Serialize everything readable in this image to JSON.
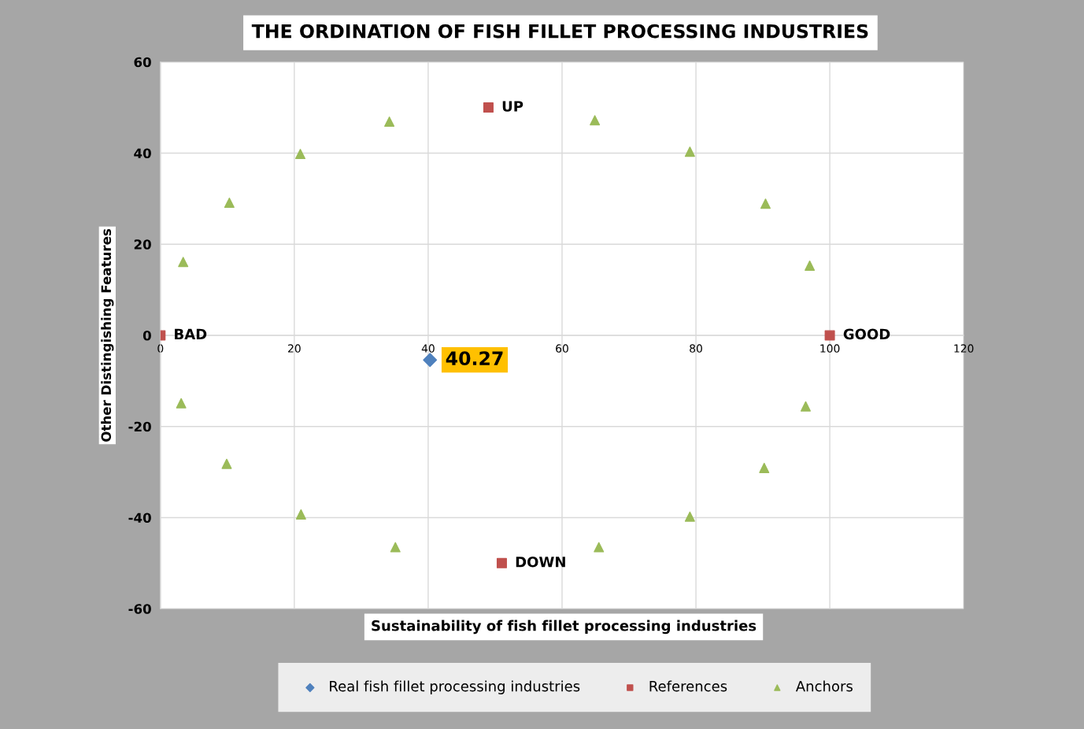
{
  "chart_data": {
    "type": "scatter",
    "title": "THE ORDINATION OF FISH FILLET PROCESSING INDUSTRIES",
    "xlabel": "Sustainability of fish fillet processing industries",
    "ylabel": "Other Distingishing Features",
    "xlim": [
      0,
      120
    ],
    "ylim": [
      -60,
      60
    ],
    "xticks": [
      0,
      20,
      40,
      60,
      80,
      100,
      120
    ],
    "yticks": [
      -60,
      -40,
      -20,
      0,
      20,
      40,
      60
    ],
    "grid": true,
    "legend": "bottom",
    "series": [
      {
        "name": "Real fish fillet processing industries",
        "color": "#4f81bd",
        "marker": "diamond",
        "x": [
          40.27
        ],
        "values": [
          -5.4
        ]
      },
      {
        "name": "References",
        "color": "#c0504d",
        "marker": "square",
        "x": [
          0,
          100,
          49,
          51
        ],
        "values": [
          0,
          0,
          50,
          -50
        ]
      },
      {
        "name": "Anchors",
        "color": "#9bbb59",
        "marker": "triangle",
        "x": [
          3.4,
          10.3,
          20.9,
          34.2,
          64.9,
          79.1,
          90.4,
          97.0,
          3.1,
          9.9,
          21.0,
          35.1,
          65.5,
          79.1,
          90.2,
          96.4
        ],
        "values": [
          16.1,
          29.1,
          39.8,
          46.9,
          47.2,
          40.3,
          28.9,
          15.3,
          -14.9,
          -28.2,
          -39.3,
          -46.5,
          -46.5,
          -39.8,
          -29.1,
          -15.6
        ]
      }
    ],
    "annotations": [
      {
        "text": "BAD",
        "x": 0,
        "y": 0
      },
      {
        "text": "GOOD",
        "x": 100,
        "y": 0
      },
      {
        "text": "UP",
        "x": 49,
        "y": 50
      },
      {
        "text": "DOWN",
        "x": 51,
        "y": -50
      },
      {
        "text": "40.27",
        "x": 40.27,
        "y": -5.4
      }
    ]
  }
}
